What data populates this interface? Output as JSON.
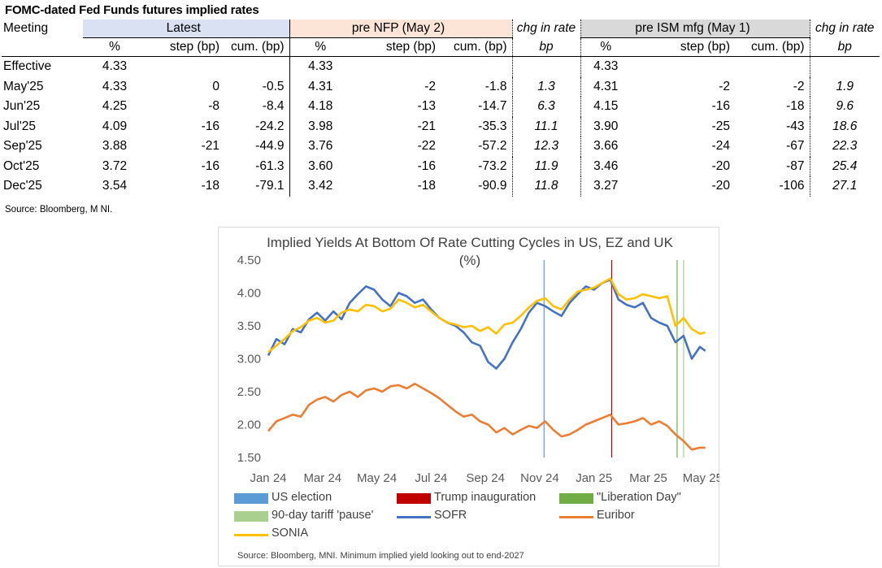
{
  "page_title": "FOMC-dated Fed Funds futures implied rates",
  "table": {
    "meeting_header": "Meeting",
    "latest_header": "Latest",
    "nfp_header": "pre NFP (May 2)",
    "chg_header_a": "chg in rate",
    "ism_header": "pre ISM mfg (May 1)",
    "chg_header_b": "chg in rate",
    "sub_pct": "%",
    "sub_step": "step (bp)",
    "sub_cum": "cum. (bp)",
    "sub_bp": "bp",
    "rows": [
      {
        "meeting": "Effective",
        "l_pct": "4.33",
        "l_step": "",
        "l_cum": "",
        "n_pct": "4.33",
        "n_step": "",
        "n_cum": "",
        "chg1": "",
        "i_pct": "4.33",
        "i_step": "",
        "i_cum": "",
        "chg2": ""
      },
      {
        "meeting": "May'25",
        "l_pct": "4.33",
        "l_step": "0",
        "l_cum": "-0.5",
        "n_pct": "4.31",
        "n_step": "-2",
        "n_cum": "-1.8",
        "chg1": "1.3",
        "i_pct": "4.31",
        "i_step": "-2",
        "i_cum": "-2",
        "chg2": "1.9"
      },
      {
        "meeting": "Jun'25",
        "l_pct": "4.25",
        "l_step": "-8",
        "l_cum": "-8.4",
        "n_pct": "4.18",
        "n_step": "-13",
        "n_cum": "-14.7",
        "chg1": "6.3",
        "i_pct": "4.15",
        "i_step": "-16",
        "i_cum": "-18",
        "chg2": "9.6"
      },
      {
        "meeting": "Jul'25",
        "l_pct": "4.09",
        "l_step": "-16",
        "l_cum": "-24.2",
        "n_pct": "3.98",
        "n_step": "-21",
        "n_cum": "-35.3",
        "chg1": "11.1",
        "i_pct": "3.90",
        "i_step": "-25",
        "i_cum": "-43",
        "chg2": "18.6"
      },
      {
        "meeting": "Sep'25",
        "l_pct": "3.88",
        "l_step": "-21",
        "l_cum": "-44.9",
        "n_pct": "3.76",
        "n_step": "-22",
        "n_cum": "-57.2",
        "chg1": "12.3",
        "i_pct": "3.66",
        "i_step": "-24",
        "i_cum": "-67",
        "chg2": "22.3"
      },
      {
        "meeting": "Oct'25",
        "l_pct": "3.72",
        "l_step": "-16",
        "l_cum": "-61.3",
        "n_pct": "3.60",
        "n_step": "-16",
        "n_cum": "-73.2",
        "chg1": "11.9",
        "i_pct": "3.46",
        "i_step": "-20",
        "i_cum": "-87",
        "chg2": "25.4"
      },
      {
        "meeting": "Dec'25",
        "l_pct": "3.54",
        "l_step": "-18",
        "l_cum": "-79.1",
        "n_pct": "3.42",
        "n_step": "-18",
        "n_cum": "-90.9",
        "chg1": "11.8",
        "i_pct": "3.27",
        "i_step": "-20",
        "i_cum": "-106",
        "chg2": "27.1"
      }
    ]
  },
  "source_top": "Source: Bloomberg, M NI.",
  "chart_data": {
    "type": "line",
    "title": "Implied Yields At Bottom Of Rate Cutting Cycles in US, EZ and UK",
    "subtitle": "(%)",
    "ylim": [
      1.5,
      4.5
    ],
    "yticks": [
      1.5,
      2.0,
      2.5,
      3.0,
      3.5,
      4.0,
      4.5
    ],
    "ytick_labels": [
      "1.50",
      "2.00",
      "2.50",
      "3.00",
      "3.50",
      "4.00",
      "4.50"
    ],
    "xlim": [
      0,
      16.2
    ],
    "xticks": [
      0,
      2,
      4,
      6,
      8,
      10,
      12,
      14,
      16
    ],
    "xtick_labels": [
      "Jan 24",
      "Mar 24",
      "May 24",
      "Jul 24",
      "Sep 24",
      "Nov 24",
      "Jan 25",
      "Mar 25",
      "May 25"
    ],
    "x_unit": "months since Jan 1, 2024",
    "events": [
      {
        "name": "US election",
        "x": 10.16,
        "color": "#5b9bd5"
      },
      {
        "name": "Trump inauguration",
        "x": 12.65,
        "color": "#c00000"
      },
      {
        "name": "\"Liberation Day\"",
        "x": 15.06,
        "color": "#70ad47"
      },
      {
        "name": "90-day tariff 'pause'",
        "x": 15.3,
        "color": "#a9d08e"
      }
    ],
    "series": [
      {
        "name": "SOFR",
        "color": "#4472c4",
        "x": [
          0,
          0.3,
          0.6,
          0.9,
          1.2,
          1.5,
          1.8,
          2.1,
          2.4,
          2.7,
          3.0,
          3.3,
          3.6,
          3.9,
          4.2,
          4.5,
          4.8,
          5.1,
          5.4,
          5.7,
          6.0,
          6.3,
          6.6,
          6.9,
          7.2,
          7.5,
          7.8,
          8.1,
          8.4,
          8.7,
          9.0,
          9.3,
          9.6,
          9.9,
          10.2,
          10.5,
          10.8,
          11.1,
          11.4,
          11.7,
          12.0,
          12.3,
          12.6,
          12.9,
          13.2,
          13.5,
          13.8,
          14.1,
          14.4,
          14.7,
          15.0,
          15.3,
          15.6,
          15.9,
          16.1
        ],
        "values": [
          3.05,
          3.3,
          3.22,
          3.45,
          3.4,
          3.6,
          3.7,
          3.58,
          3.72,
          3.6,
          3.85,
          3.98,
          4.1,
          4.05,
          3.9,
          3.8,
          4.0,
          3.95,
          3.85,
          3.9,
          3.75,
          3.62,
          3.55,
          3.5,
          3.4,
          3.25,
          3.2,
          2.95,
          2.85,
          3.0,
          3.25,
          3.45,
          3.7,
          3.85,
          3.8,
          3.72,
          3.65,
          3.85,
          3.98,
          4.1,
          4.05,
          4.15,
          4.2,
          3.9,
          3.82,
          3.78,
          3.85,
          3.62,
          3.55,
          3.5,
          3.25,
          3.35,
          3.0,
          3.18,
          3.12
        ]
      },
      {
        "name": "Euribor",
        "color": "#ed7d31",
        "x": [
          0,
          0.3,
          0.6,
          0.9,
          1.2,
          1.5,
          1.8,
          2.1,
          2.4,
          2.7,
          3.0,
          3.3,
          3.6,
          3.9,
          4.2,
          4.5,
          4.8,
          5.1,
          5.4,
          5.7,
          6.0,
          6.3,
          6.6,
          6.9,
          7.2,
          7.5,
          7.8,
          8.1,
          8.4,
          8.7,
          9.0,
          9.3,
          9.6,
          9.9,
          10.2,
          10.5,
          10.8,
          11.1,
          11.4,
          11.7,
          12.0,
          12.3,
          12.6,
          12.9,
          13.2,
          13.5,
          13.8,
          14.1,
          14.4,
          14.7,
          15.0,
          15.3,
          15.6,
          15.9,
          16.1
        ],
        "values": [
          1.9,
          2.05,
          2.1,
          2.15,
          2.12,
          2.3,
          2.38,
          2.42,
          2.35,
          2.45,
          2.5,
          2.42,
          2.52,
          2.55,
          2.5,
          2.58,
          2.6,
          2.55,
          2.62,
          2.55,
          2.48,
          2.4,
          2.3,
          2.2,
          2.12,
          2.15,
          2.05,
          2.0,
          1.88,
          1.95,
          1.85,
          1.92,
          1.98,
          1.95,
          2.05,
          1.92,
          1.82,
          1.85,
          1.92,
          2.0,
          2.05,
          2.1,
          2.15,
          2.0,
          2.02,
          2.05,
          2.1,
          2.0,
          2.05,
          1.98,
          1.85,
          1.75,
          1.62,
          1.65,
          1.65
        ]
      },
      {
        "name": "SONIA",
        "color": "#ffc000",
        "x": [
          0,
          0.3,
          0.6,
          0.9,
          1.2,
          1.5,
          1.8,
          2.1,
          2.4,
          2.7,
          3.0,
          3.3,
          3.6,
          3.9,
          4.2,
          4.5,
          4.8,
          5.1,
          5.4,
          5.7,
          6.0,
          6.3,
          6.6,
          6.9,
          7.2,
          7.5,
          7.8,
          8.1,
          8.4,
          8.7,
          9.0,
          9.3,
          9.6,
          9.9,
          10.2,
          10.5,
          10.8,
          11.1,
          11.4,
          11.7,
          12.0,
          12.3,
          12.6,
          12.9,
          13.2,
          13.5,
          13.8,
          14.1,
          14.4,
          14.7,
          15.0,
          15.3,
          15.6,
          15.9,
          16.1
        ],
        "values": [
          3.1,
          3.2,
          3.3,
          3.42,
          3.48,
          3.58,
          3.62,
          3.55,
          3.58,
          3.7,
          3.75,
          3.72,
          3.82,
          3.8,
          3.72,
          3.76,
          3.9,
          3.85,
          3.78,
          3.82,
          3.72,
          3.62,
          3.55,
          3.52,
          3.48,
          3.5,
          3.42,
          3.48,
          3.38,
          3.52,
          3.55,
          3.65,
          3.78,
          3.88,
          3.92,
          3.8,
          3.75,
          3.9,
          4.02,
          4.05,
          4.08,
          4.15,
          4.22,
          3.98,
          3.9,
          3.92,
          3.98,
          3.95,
          3.92,
          3.95,
          3.5,
          3.62,
          3.45,
          3.38,
          3.4
        ]
      }
    ],
    "legend": [
      "US election",
      "Trump inauguration",
      "\"Liberation Day\"",
      "90-day tariff 'pause'",
      "SOFR",
      "Euribor",
      "SONIA"
    ]
  },
  "legend_labels": {
    "us_election": "US election",
    "trump": "Trump inauguration",
    "liberation": "\"Liberation Day\"",
    "pause": "90-day tariff 'pause'",
    "sofr": "SOFR",
    "euribor": "Euribor",
    "sonia": "SONIA"
  },
  "source_bottom": "Source: Bloomberg, MNI. Minimum implied yield looking out to end-2027"
}
